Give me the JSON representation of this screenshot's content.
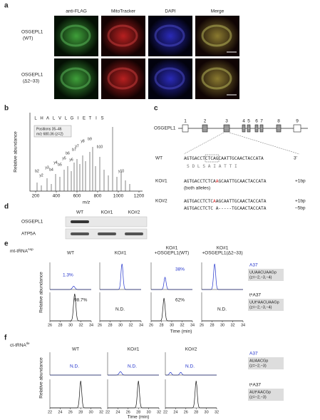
{
  "panel_a": {
    "label": "a",
    "columns": [
      "anti-FLAG",
      "MitoTracker",
      "DAPI",
      "Merge"
    ],
    "rows": [
      {
        "name": "OSGEPL1",
        "variant": "(WT)"
      },
      {
        "name": "OSGEPL1",
        "variant": "(Δ2–33)"
      }
    ]
  },
  "panel_b": {
    "label": "b",
    "y_label": "Relative abundance",
    "x_label": "m/z",
    "x_ticks": [
      "200",
      "400",
      "600",
      "800",
      "1000",
      "1200"
    ],
    "sequence": [
      "L",
      "H",
      "A",
      "L",
      "V",
      "L",
      "G",
      "I",
      "E",
      "T",
      "I",
      "S"
    ],
    "inset": [
      "Positions 35–46",
      "m/z 680.36 (z=2)"
    ],
    "peaks": [
      "b2",
      "y2",
      "y3",
      "b4",
      "y4",
      "b5",
      "y5",
      "b6",
      "y6",
      "b7",
      "y7",
      "y8",
      "b9",
      "b10",
      "y10"
    ]
  },
  "panel_c": {
    "label": "c",
    "gene": "OSGEPL1",
    "exons": [
      "1",
      "2",
      "3",
      "4",
      "5",
      "6",
      "7",
      "8",
      "9"
    ],
    "wt_label": "WT",
    "wt_seq": "AGTGACCTCTCAGCAATTGCAACTACCATA",
    "wt_end": "3'",
    "translation": "S D L S A I A T T I",
    "ko1_label": "KO#1",
    "ko1_seq": [
      "AGTGACCTCTCA",
      "A",
      "GCAATTGCAACTACCATA"
    ],
    "ko1_change": "+1bp",
    "ko1_note": "(both alleles)",
    "ko2_label": "KO#2",
    "ko2_seq1": [
      "AGTGACCTCTC",
      "A",
      "AGCAATTGCAACTACCATA"
    ],
    "ko2_change1": "+1bp",
    "ko2_seq2": "AGTGACCTCTC A-----TGCAACTACCATA",
    "ko2_change2": "–5bp"
  },
  "panel_d": {
    "label": "d",
    "lanes": [
      "WT",
      "KO#1",
      "KO#2"
    ],
    "rows": [
      "OSGEPL1",
      "ATP5A"
    ]
  },
  "panel_e": {
    "label": "e",
    "trna": "mt-tRNA",
    "trna_sup": "Asp",
    "columns": [
      [
        "WT"
      ],
      [
        "KO#1"
      ],
      [
        "KO#1",
        "+OSGEPL1(WT)"
      ],
      [
        "KO#1",
        "+OSGEPL1(Δ2–33)"
      ]
    ],
    "top_labels": [
      "1.3%",
      "",
      "38%",
      ""
    ],
    "bottom_labels": [
      "98.7%",
      "N.D.",
      "62%",
      "N.D."
    ],
    "y_label": "Relative abundance",
    "x_ticks": [
      "26",
      "28",
      "30",
      "32",
      "34"
    ],
    "x_label": "Time (min)",
    "top_species": "A37",
    "top_frag": "UUAACUAAGp",
    "top_charge": "(z=−2,−3,−4)",
    "bottom_species": "t⁶A37",
    "bottom_frag": "UUt⁶AACUAAGp",
    "bottom_charge": "(z=−2,−3,−4)"
  },
  "panel_f": {
    "label": "f",
    "trna": "ct-tRNA",
    "trna_sup": "Ile",
    "columns": [
      "WT",
      "KO#1",
      "KO#2"
    ],
    "top_labels": [
      "N.D.",
      "N.D.",
      "N.D."
    ],
    "y_label": "Relative abundance",
    "x_ticks": [
      "22",
      "24",
      "26",
      "28",
      "30",
      "32"
    ],
    "x_label": "Time (min)",
    "top_species": "A37",
    "top_frag": "AUAACGp",
    "top_charge": "(z=−2,−3)",
    "bottom_species": "t⁶A37",
    "bottom_frag": "AUt⁶AACGp",
    "bottom_charge": "(z=−2,−3)"
  }
}
